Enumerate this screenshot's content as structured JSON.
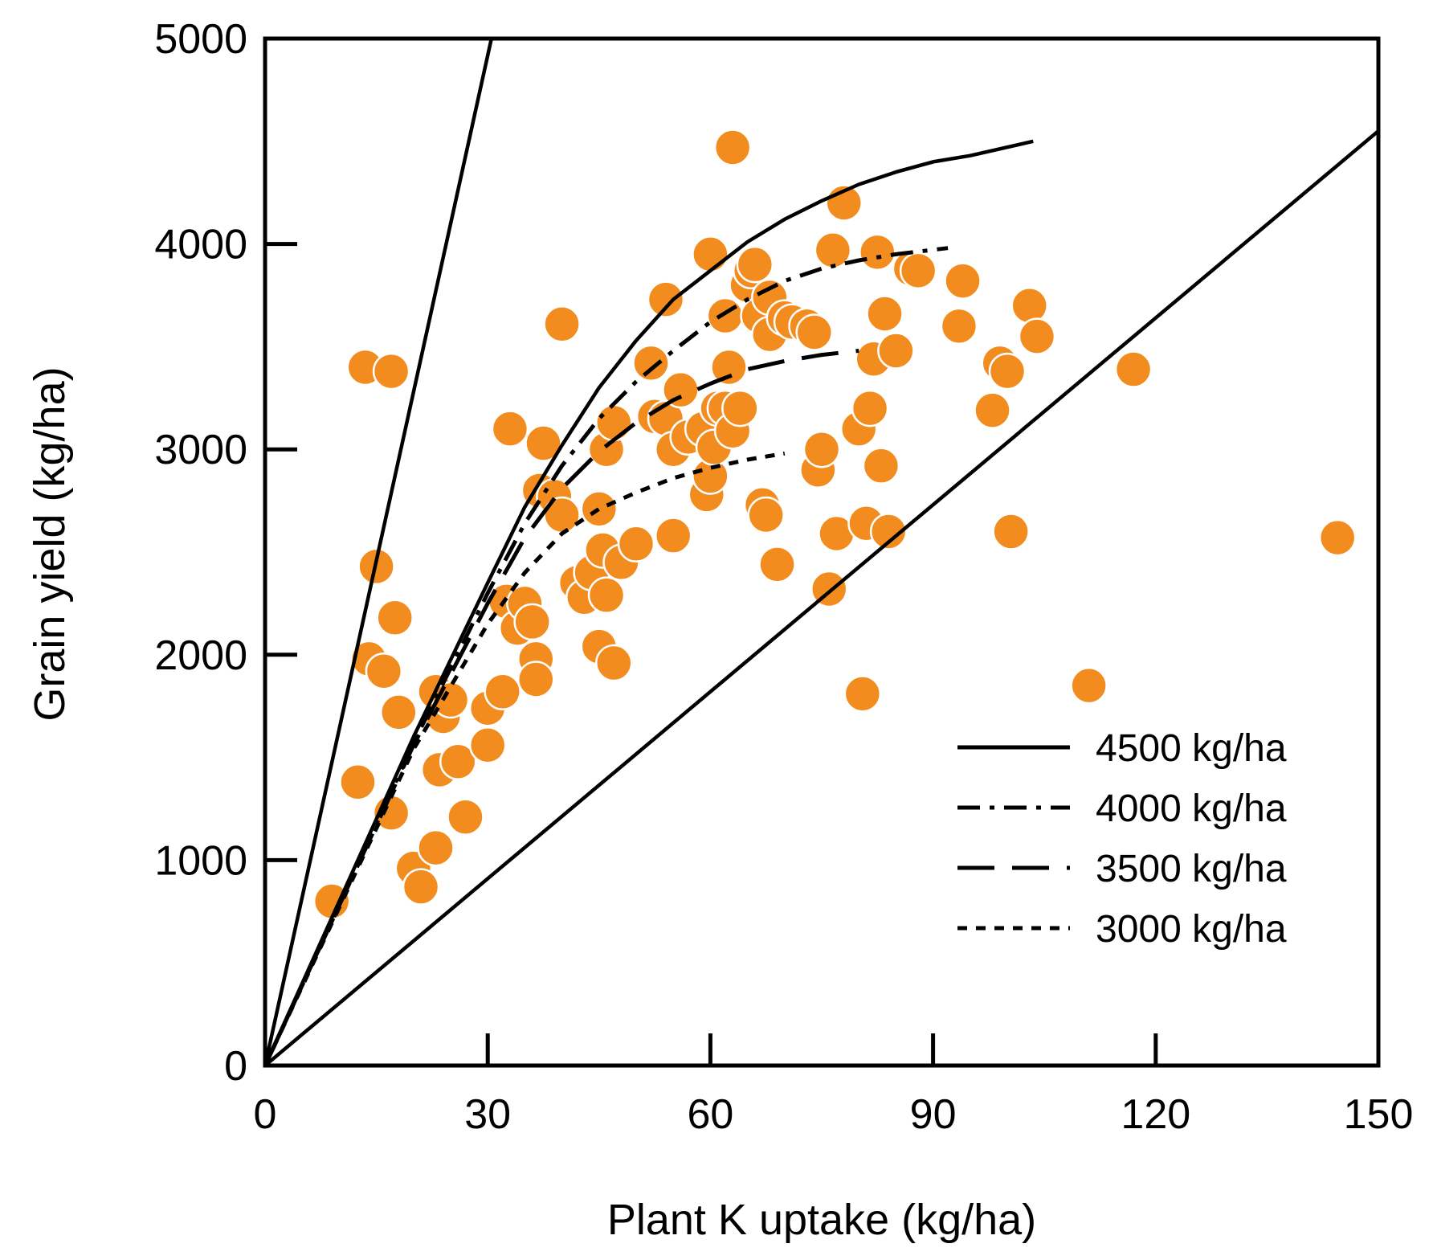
{
  "chart_data": {
    "type": "scatter",
    "xlabel": "Plant K uptake (kg/ha)",
    "ylabel": "Grain yield (kg/ha)",
    "xlim": [
      0,
      150
    ],
    "ylim": [
      0,
      5000
    ],
    "xticks": [
      0,
      30,
      60,
      90,
      120,
      150
    ],
    "yticks": [
      0,
      1000,
      2000,
      3000,
      4000,
      5000
    ],
    "x_tick_labels": [
      "0",
      "30",
      "60",
      "90",
      "120",
      "150"
    ],
    "y_tick_labels": [
      "0",
      "1000",
      "2000",
      "3000",
      "4000",
      "5000"
    ],
    "grid": false,
    "legend_position": "bottom-right",
    "marker_color": "#F28C1E",
    "points": [
      [
        9,
        800
      ],
      [
        12.5,
        1380
      ],
      [
        13.5,
        3400
      ],
      [
        14,
        1980
      ],
      [
        15,
        2430
      ],
      [
        16,
        1920
      ],
      [
        17,
        1230
      ],
      [
        17,
        3380
      ],
      [
        17.5,
        2180
      ],
      [
        18,
        1720
      ],
      [
        20,
        960
      ],
      [
        21,
        870
      ],
      [
        23,
        1060
      ],
      [
        23,
        1820
      ],
      [
        23.5,
        1440
      ],
      [
        24,
        1700
      ],
      [
        25,
        1780
      ],
      [
        26,
        1480
      ],
      [
        27,
        1210
      ],
      [
        30,
        1740
      ],
      [
        30,
        1560
      ],
      [
        32,
        1820
      ],
      [
        32.5,
        2260
      ],
      [
        33,
        3100
      ],
      [
        34,
        2130
      ],
      [
        35,
        2250
      ],
      [
        36,
        2160
      ],
      [
        36.5,
        1980
      ],
      [
        36.5,
        1880
      ],
      [
        37,
        2800
      ],
      [
        37.5,
        3030
      ],
      [
        39,
        2770
      ],
      [
        40,
        2680
      ],
      [
        40,
        3610
      ],
      [
        42,
        2350
      ],
      [
        43,
        2280
      ],
      [
        44,
        2400
      ],
      [
        45,
        2710
      ],
      [
        45,
        2040
      ],
      [
        45.5,
        2510
      ],
      [
        46,
        2290
      ],
      [
        46,
        3000
      ],
      [
        47,
        1960
      ],
      [
        47,
        3130
      ],
      [
        48,
        2450
      ],
      [
        50,
        2540
      ],
      [
        52,
        3420
      ],
      [
        52.5,
        3160
      ],
      [
        54,
        3150
      ],
      [
        54,
        3730
      ],
      [
        55,
        2580
      ],
      [
        55,
        3000
      ],
      [
        56,
        3290
      ],
      [
        57,
        3060
      ],
      [
        59,
        3100
      ],
      [
        59.5,
        2780
      ],
      [
        60,
        2870
      ],
      [
        60,
        3950
      ],
      [
        60.5,
        3010
      ],
      [
        61,
        3200
      ],
      [
        62,
        3200
      ],
      [
        62,
        3650
      ],
      [
        62.5,
        3400
      ],
      [
        63,
        4470
      ],
      [
        63,
        3090
      ],
      [
        64,
        3200
      ],
      [
        65,
        3800
      ],
      [
        65.5,
        3870
      ],
      [
        66,
        3900
      ],
      [
        66.5,
        3650
      ],
      [
        67,
        2730
      ],
      [
        67.5,
        2680
      ],
      [
        68,
        3560
      ],
      [
        68,
        3740
      ],
      [
        69,
        2440
      ],
      [
        70,
        3640
      ],
      [
        71,
        3620
      ],
      [
        73,
        3600
      ],
      [
        74,
        3570
      ],
      [
        74.5,
        2900
      ],
      [
        75,
        3000
      ],
      [
        76,
        2320
      ],
      [
        76.5,
        3970
      ],
      [
        77,
        2590
      ],
      [
        78,
        4200
      ],
      [
        80,
        3100
      ],
      [
        80.5,
        1810
      ],
      [
        81,
        2640
      ],
      [
        81.5,
        3200
      ],
      [
        82,
        3440
      ],
      [
        82.5,
        3960
      ],
      [
        83,
        2920
      ],
      [
        83.5,
        3660
      ],
      [
        84,
        2600
      ],
      [
        85,
        3480
      ],
      [
        87,
        3880
      ],
      [
        88,
        3870
      ],
      [
        93.5,
        3600
      ],
      [
        94,
        3820
      ],
      [
        98,
        3190
      ],
      [
        99,
        3420
      ],
      [
        100,
        3380
      ],
      [
        100.5,
        2600
      ],
      [
        103,
        3700
      ],
      [
        104,
        3550
      ],
      [
        111,
        1850
      ],
      [
        117,
        3390
      ],
      [
        144.5,
        2570
      ]
    ],
    "series": [
      {
        "name": "boundary-upper",
        "style": "solid",
        "x": [
          0,
          30.5
        ],
        "y": [
          0,
          5000
        ]
      },
      {
        "name": "boundary-lower",
        "style": "solid",
        "x": [
          0,
          150
        ],
        "y": [
          0,
          4550
        ]
      },
      {
        "name": "4500 kg/ha",
        "style": "solid",
        "x": [
          0,
          10,
          20,
          30,
          35,
          40,
          45,
          50,
          55,
          60,
          65,
          70,
          75,
          80,
          85,
          90,
          95,
          103.5
        ],
        "y": [
          0,
          800,
          1600,
          2350,
          2720,
          3020,
          3300,
          3530,
          3730,
          3870,
          4010,
          4120,
          4210,
          4290,
          4350,
          4400,
          4430,
          4500
        ]
      },
      {
        "name": "4000 kg/ha",
        "style": "dashdot",
        "x": [
          0,
          10,
          20,
          30,
          35,
          40,
          45,
          50,
          55,
          60,
          65,
          70,
          75,
          80,
          85,
          92
        ],
        "y": [
          0,
          780,
          1570,
          2300,
          2640,
          2920,
          3150,
          3330,
          3480,
          3620,
          3730,
          3820,
          3880,
          3920,
          3950,
          3980
        ]
      },
      {
        "name": "3500 kg/ha",
        "style": "dashed",
        "x": [
          0,
          10,
          20,
          30,
          35,
          40,
          45,
          50,
          55,
          60,
          65,
          70,
          75,
          80
        ],
        "y": [
          0,
          780,
          1560,
          2250,
          2570,
          2810,
          2990,
          3130,
          3240,
          3320,
          3390,
          3430,
          3460,
          3480
        ]
      },
      {
        "name": "3000 kg/ha",
        "style": "dotted",
        "x": [
          0,
          10,
          20,
          30,
          35,
          40,
          45,
          50,
          55,
          60,
          65,
          70
        ],
        "y": [
          0,
          770,
          1540,
          2150,
          2400,
          2590,
          2710,
          2790,
          2860,
          2910,
          2950,
          2980
        ]
      }
    ],
    "legend": [
      {
        "label": "4500 kg/ha",
        "style": "solid"
      },
      {
        "label": "4000 kg/ha",
        "style": "dashdot"
      },
      {
        "label": "3500 kg/ha",
        "style": "dashed"
      },
      {
        "label": "3000 kg/ha",
        "style": "dotted"
      }
    ]
  }
}
